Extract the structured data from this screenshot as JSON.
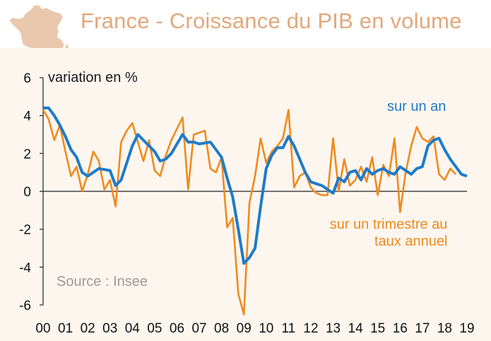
{
  "title": "France - Croissance du PIB en volume",
  "icon": "france-map-icon",
  "colors": {
    "title": "#e3a77c",
    "annual": "#1f7bc9",
    "quarterly": "#f08a1e",
    "background": "#fcf6ef",
    "map": "#e9c8ad"
  },
  "chart_data": {
    "type": "line",
    "ylabel": "variation en %",
    "ylim": [
      -6,
      6
    ],
    "yticks": [
      6,
      4,
      2,
      0,
      -2,
      -4,
      -6
    ],
    "xlim": [
      2000,
      2019
    ],
    "xticks": [
      "00",
      "01",
      "02",
      "03",
      "04",
      "05",
      "06",
      "07",
      "08",
      "09",
      "10",
      "11",
      "12",
      "13",
      "14",
      "15",
      "16",
      "17",
      "18",
      "19"
    ],
    "source": "Source : Insee",
    "grid": false,
    "series": [
      {
        "name": "sur un trimestre au taux annuel",
        "label_lines": [
          "sur un trimestre au",
          "taux annuel"
        ],
        "color": "#f08a1e",
        "values": [
          4.3,
          3.8,
          2.7,
          3.5,
          2.1,
          0.8,
          1.3,
          0.0,
          0.9,
          2.1,
          1.6,
          0.1,
          0.6,
          -0.8,
          2.6,
          3.2,
          3.6,
          2.6,
          1.6,
          2.7,
          1.1,
          0.8,
          1.9,
          2.7,
          3.3,
          3.9,
          0.1,
          3.0,
          3.1,
          3.2,
          1.2,
          1.0,
          1.8,
          -1.9,
          -1.4,
          -5.4,
          -6.5,
          -0.6,
          0.8,
          2.8,
          1.5,
          2.1,
          2.4,
          2.8,
          4.3,
          0.2,
          0.8,
          1.0,
          0.2,
          -0.1,
          -0.2,
          -0.2,
          2.8,
          0.0,
          1.7,
          0.3,
          0.6,
          1.3,
          0.5,
          1.8,
          -0.2,
          1.4,
          0.8,
          2.8,
          -1.1,
          1.0,
          2.4,
          3.4,
          2.8,
          2.6,
          2.9,
          0.9,
          0.6,
          1.2,
          0.9
        ],
        "start": 2000.0,
        "step": 0.25
      },
      {
        "name": "sur un an",
        "color": "#1f7bc9",
        "x": [
          2000.0,
          2000.25,
          2000.5,
          2000.75,
          2001.0,
          2001.25,
          2001.5,
          2001.75,
          2002.0,
          2002.5,
          2003.0,
          2003.25,
          2003.5,
          2003.75,
          2004.0,
          2004.25,
          2004.5,
          2004.75,
          2005.0,
          2005.25,
          2005.5,
          2005.75,
          2006.0,
          2006.25,
          2006.5,
          2006.75,
          2007.0,
          2007.5,
          2007.75,
          2008.0,
          2008.25,
          2008.5,
          2008.75,
          2009.0,
          2009.25,
          2009.5,
          2009.75,
          2010.0,
          2010.25,
          2010.5,
          2010.75,
          2011.0,
          2011.25,
          2011.5,
          2011.75,
          2012.0,
          2012.25,
          2012.5,
          2012.75,
          2013.0,
          2013.25,
          2013.5,
          2013.75,
          2014.0,
          2014.25,
          2014.5,
          2014.75,
          2015.0,
          2015.25,
          2015.5,
          2015.75,
          2016.0,
          2016.25,
          2016.5,
          2016.75,
          2017.0,
          2017.25,
          2017.5,
          2017.75,
          2018.0,
          2018.25,
          2018.5,
          2018.75,
          2019.0
        ],
        "values": [
          4.4,
          4.4,
          4.0,
          3.5,
          2.9,
          2.2,
          1.8,
          1.0,
          0.8,
          1.2,
          1.1,
          0.3,
          0.6,
          1.5,
          2.4,
          3.0,
          2.7,
          2.4,
          2.1,
          1.6,
          1.7,
          2.0,
          2.5,
          3.0,
          2.6,
          2.6,
          2.5,
          2.6,
          2.2,
          1.8,
          0.7,
          -0.3,
          -2.0,
          -3.8,
          -3.5,
          -3.0,
          -0.8,
          1.2,
          1.9,
          2.3,
          2.3,
          2.9,
          2.4,
          1.7,
          1.0,
          0.5,
          0.4,
          0.3,
          0.1,
          -0.1,
          0.7,
          0.5,
          1.0,
          1.1,
          0.6,
          1.2,
          0.9,
          1.1,
          1.2,
          1.0,
          0.9,
          1.3,
          1.1,
          0.9,
          1.2,
          1.3,
          2.4,
          2.7,
          2.8,
          2.2,
          1.7,
          1.3,
          0.9,
          0.8
        ]
      }
    ]
  }
}
